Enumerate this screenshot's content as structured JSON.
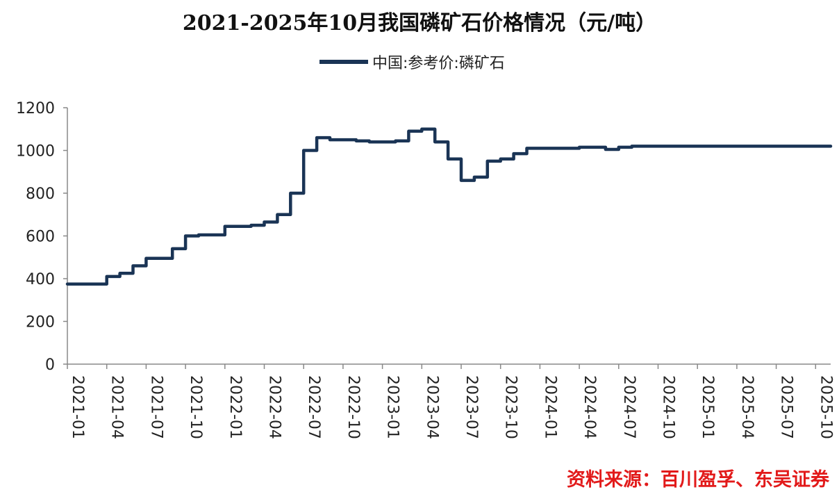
{
  "chart_data": {
    "type": "line",
    "title": "2021-2025年10月我国磷矿石价格情况（元/吨）",
    "xlabel": "",
    "ylabel": "",
    "ylim": [
      0,
      1200
    ],
    "yticks": [
      "0",
      "200",
      "400",
      "600",
      "800",
      "1000",
      "1200"
    ],
    "xticks": [
      "2021-01",
      "2021-04",
      "2021-07",
      "2021-10",
      "2022-01",
      "2022-04",
      "2022-07",
      "2022-10",
      "2023-01",
      "2023-04",
      "2023-07",
      "2023-10",
      "2024-01",
      "2024-04",
      "2024-07",
      "2024-10",
      "2025-01",
      "2025-04",
      "2025-07",
      "2025-10"
    ],
    "grid": false,
    "legend": "top-center",
    "series": [
      {
        "name": "中国:参考价:磷矿石",
        "color": "#1a3455",
        "x": [
          "2021-01",
          "2021-02",
          "2021-03",
          "2021-04",
          "2021-05",
          "2021-06",
          "2021-07",
          "2021-08",
          "2021-09",
          "2021-10",
          "2021-11",
          "2021-12",
          "2022-01",
          "2022-02",
          "2022-03",
          "2022-04",
          "2022-05",
          "2022-06",
          "2022-07",
          "2022-08",
          "2022-09",
          "2022-10",
          "2022-11",
          "2022-12",
          "2023-01",
          "2023-02",
          "2023-03",
          "2023-04",
          "2023-05",
          "2023-06",
          "2023-07",
          "2023-08",
          "2023-09",
          "2023-10",
          "2023-11",
          "2023-12",
          "2024-01",
          "2024-02",
          "2024-03",
          "2024-04",
          "2024-05",
          "2024-06",
          "2024-07",
          "2024-08",
          "2024-09",
          "2024-10",
          "2024-11",
          "2024-12",
          "2025-01",
          "2025-02",
          "2025-03",
          "2025-04",
          "2025-05",
          "2025-06",
          "2025-07",
          "2025-08",
          "2025-09",
          "2025-10"
        ],
        "values": [
          375,
          375,
          375,
          410,
          425,
          460,
          495,
          495,
          540,
          600,
          605,
          605,
          645,
          645,
          650,
          665,
          700,
          800,
          1000,
          1060,
          1050,
          1050,
          1045,
          1040,
          1040,
          1045,
          1090,
          1100,
          1040,
          960,
          860,
          875,
          950,
          960,
          985,
          1010,
          1010,
          1010,
          1010,
          1015,
          1015,
          1005,
          1015,
          1020,
          1020,
          1020,
          1020,
          1020,
          1020,
          1020,
          1020,
          1020,
          1020,
          1020,
          1020,
          1020,
          1020,
          1020
        ]
      }
    ]
  },
  "source_note": "资料来源：百川盈孚、东吴证券"
}
